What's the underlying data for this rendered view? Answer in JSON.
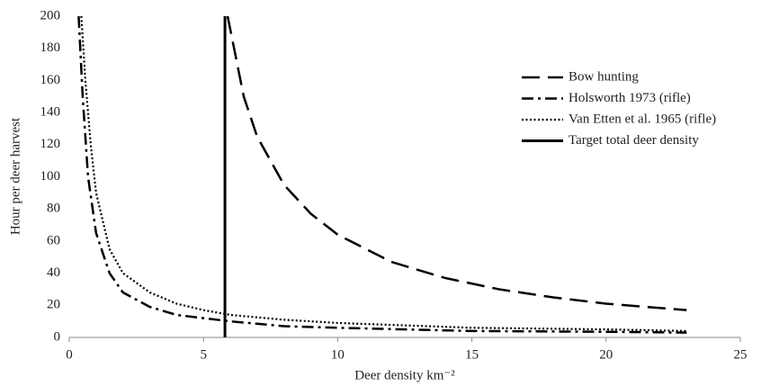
{
  "chart_data": {
    "type": "line",
    "x_label": "Deer density km⁻²",
    "y_label": "Hour per deer harvest",
    "xlim": [
      0,
      25
    ],
    "xticks": [
      0,
      5,
      10,
      15,
      20,
      25
    ],
    "ylim": [
      0,
      200
    ],
    "yticks": [
      0,
      20,
      40,
      60,
      80,
      100,
      120,
      140,
      160,
      180,
      200
    ],
    "grid": false,
    "legend": "right",
    "series": [
      {
        "name": "Bow hunting",
        "color": "#000000",
        "dash": "dashed",
        "x": [
          5.9,
          6.5,
          7,
          8,
          9,
          10,
          12,
          14,
          16,
          18,
          20,
          23
        ],
        "values": [
          200,
          150,
          125,
          95,
          77,
          64,
          47,
          37,
          30,
          25,
          21,
          17
        ]
      },
      {
        "name": "Holsworth 1973 (rifle)",
        "color": "#000000",
        "dash": "dash-dot",
        "x": [
          0.35,
          0.5,
          0.7,
          1,
          1.5,
          2,
          3,
          4,
          5,
          6,
          8,
          10,
          15,
          20,
          23
        ],
        "values": [
          200,
          150,
          100,
          65,
          40,
          28,
          19,
          14,
          12,
          10,
          7,
          6,
          4,
          3.5,
          3
        ]
      },
      {
        "name": "Van Etten et al. 1965 (rifle)",
        "color": "#000000",
        "dash": "dotted",
        "x": [
          0.45,
          0.6,
          0.8,
          1,
          1.5,
          2,
          3,
          4,
          5,
          6,
          8,
          10,
          15,
          20,
          23
        ],
        "values": [
          200,
          160,
          120,
          90,
          55,
          40,
          28,
          21,
          17,
          14,
          11,
          9,
          6,
          5,
          4
        ]
      },
      {
        "name": "Target total deer density",
        "color": "#000000",
        "dash": "solid",
        "x": [
          5.8,
          5.8
        ],
        "values": [
          0,
          200
        ]
      }
    ]
  }
}
